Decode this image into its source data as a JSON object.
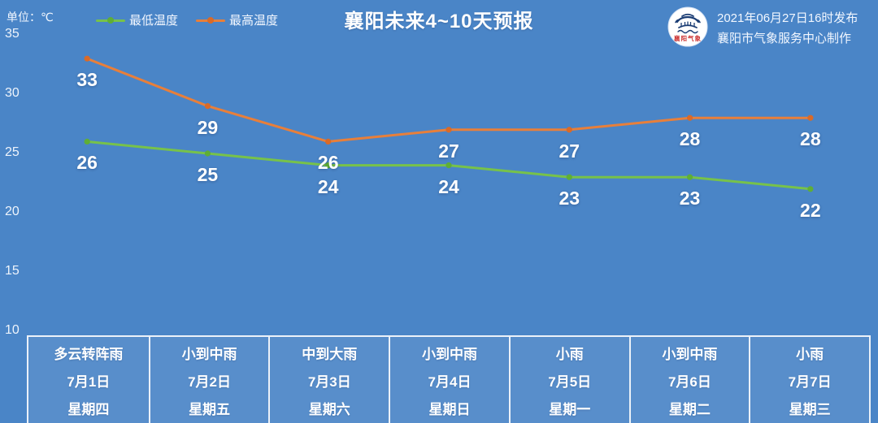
{
  "colors": {
    "background": "#4a85c7",
    "min_line": "#77c24a",
    "min_marker": "#5fae36",
    "max_line": "#e87f3a",
    "max_marker": "#d96a28",
    "text": "#ffffff",
    "logo_navy": "#1b3d74",
    "logo_red": "#cc3333"
  },
  "header": {
    "unit_label": "单位：℃",
    "title": "襄阳未来4~10天预报",
    "publish_line1": "2021年06月27日16时发布",
    "publish_line2": "襄阳市气象服务中心制作",
    "logo_text": "襄阳气象"
  },
  "legend": [
    {
      "name": "最低温度",
      "color": "#77c24a",
      "dot": "#5fae36"
    },
    {
      "name": "最高温度",
      "color": "#e87f3a",
      "dot": "#d96a28"
    }
  ],
  "chart_data": {
    "type": "line",
    "title": "襄阳未来4~10天预报",
    "ylabel": "单位：℃",
    "categories": [
      "7月1日",
      "7月2日",
      "7月3日",
      "7月4日",
      "7月5日",
      "7月6日",
      "7月7日"
    ],
    "series": [
      {
        "name": "最低温度",
        "values": [
          26,
          25,
          24,
          24,
          23,
          23,
          22
        ],
        "color": "#77c24a",
        "marker": "#5fae36"
      },
      {
        "name": "最高温度",
        "values": [
          33,
          29,
          26,
          27,
          27,
          28,
          28
        ],
        "color": "#e87f3a",
        "marker": "#d96a28"
      }
    ],
    "ylim": [
      10,
      35
    ],
    "yticks": [
      35,
      30,
      25,
      20,
      15,
      10
    ],
    "grid": false,
    "legend_position": "top-left",
    "labels_shown": true
  },
  "forecast_table": {
    "columns": [
      {
        "weather": "多云转阵雨",
        "date": "7月1日",
        "weekday": "星期四"
      },
      {
        "weather": "小到中雨",
        "date": "7月2日",
        "weekday": "星期五"
      },
      {
        "weather": "中到大雨",
        "date": "7月3日",
        "weekday": "星期六"
      },
      {
        "weather": "小到中雨",
        "date": "7月4日",
        "weekday": "星期日"
      },
      {
        "weather": "小雨",
        "date": "7月5日",
        "weekday": "星期一"
      },
      {
        "weather": "小到中雨",
        "date": "7月6日",
        "weekday": "星期二"
      },
      {
        "weather": "小雨",
        "date": "7月7日",
        "weekday": "星期三"
      }
    ]
  }
}
